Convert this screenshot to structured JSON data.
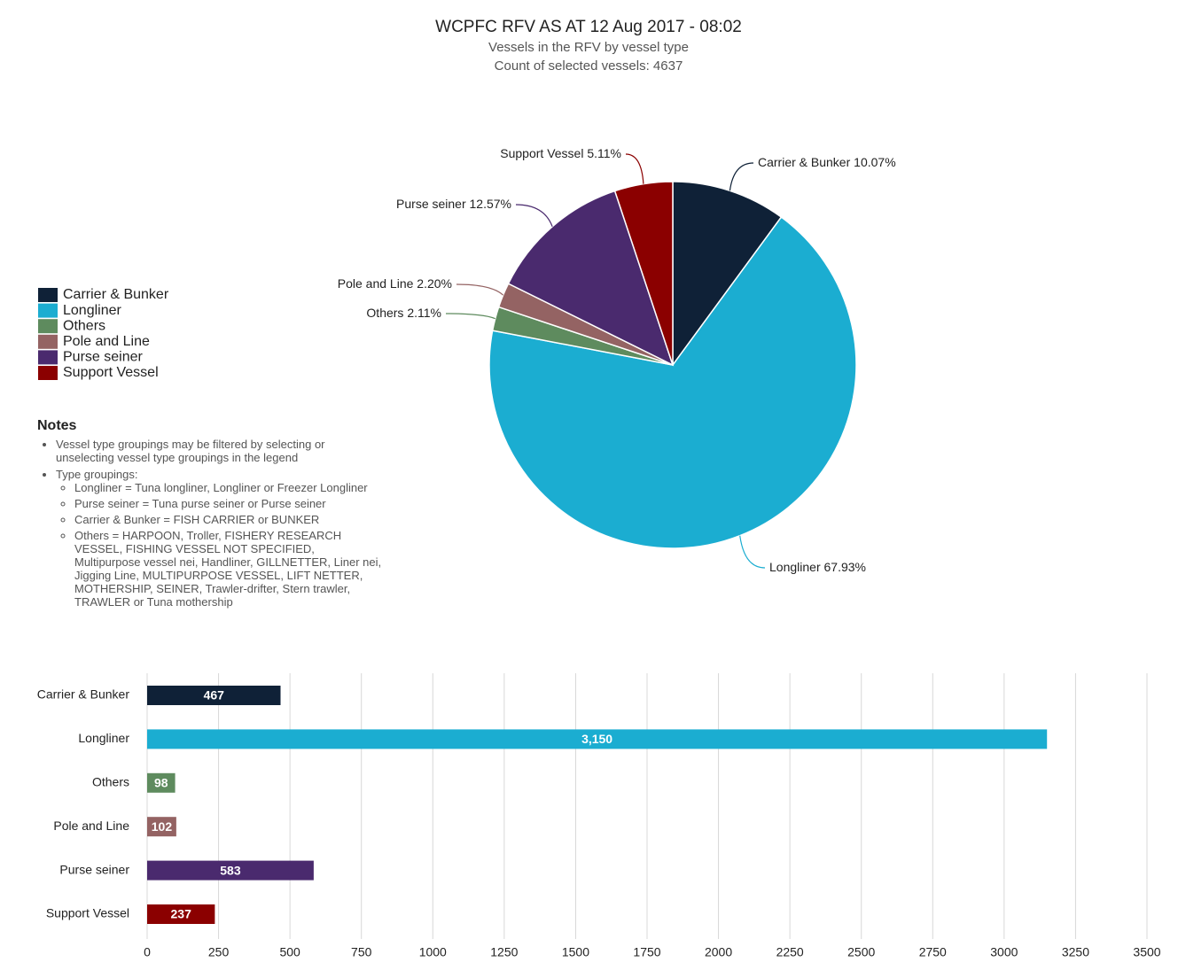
{
  "chart_data": [
    {
      "type": "pie",
      "title": "WCPFC RFV AS AT 12 Aug 2017 - 08:02",
      "subtitle": "Vessels in the RFV by vessel type",
      "caption": "Count of selected vessels: 4637",
      "categories": [
        "Carrier & Bunker",
        "Longliner",
        "Others",
        "Pole and Line",
        "Purse seiner",
        "Support Vessel"
      ],
      "values": [
        10.07,
        67.93,
        2.11,
        2.2,
        12.57,
        5.11
      ],
      "value_labels": [
        "10.07%",
        "67.93%",
        "2.11%",
        "2.20%",
        "12.57%",
        "5.11%"
      ],
      "colors": [
        "#0f2137",
        "#1badd1",
        "#5e8b5e",
        "#946363",
        "#4a2a6e",
        "#8b0000"
      ],
      "legend": "left"
    },
    {
      "type": "bar",
      "orientation": "horizontal",
      "categories": [
        "Carrier & Bunker",
        "Longliner",
        "Others",
        "Pole and Line",
        "Purse seiner",
        "Support Vessel"
      ],
      "values": [
        467,
        3150,
        98,
        102,
        583,
        237
      ],
      "value_labels": [
        "467",
        "3,150",
        "98",
        "102",
        "583",
        "237"
      ],
      "colors": [
        "#0f2137",
        "#1badd1",
        "#5e8b5e",
        "#946363",
        "#4a2a6e",
        "#8b0000"
      ],
      "xlim": [
        0,
        3500
      ],
      "xticks": [
        0,
        250,
        500,
        750,
        1000,
        1250,
        1500,
        1750,
        2000,
        2250,
        2500,
        2750,
        3000,
        3250,
        3500
      ],
      "grid": true
    }
  ],
  "notes": {
    "title": "Notes",
    "items": [
      {
        "text": "Vessel type groupings may be filtered by selecting or unselecting vessel type groupings in the legend"
      },
      {
        "text": "Type groupings:",
        "subitems": [
          "Longliner = Tuna longliner, Longliner or Freezer Longliner",
          "Purse seiner = Tuna purse seiner or Purse seiner",
          "Carrier & Bunker = FISH CARRIER or BUNKER",
          "Others = HARPOON, Troller, FISHERY RESEARCH VESSEL, FISHING VESSEL NOT SPECIFIED, Multipurpose vessel nei, Handliner, GILLNETTER, Liner nei, Jigging Line, MULTIPURPOSE VESSEL, LIFT NETTER, MOTHERSHIP, SEINER, Trawler-drifter, Stern trawler, TRAWLER or Tuna mothership"
        ]
      }
    ]
  }
}
